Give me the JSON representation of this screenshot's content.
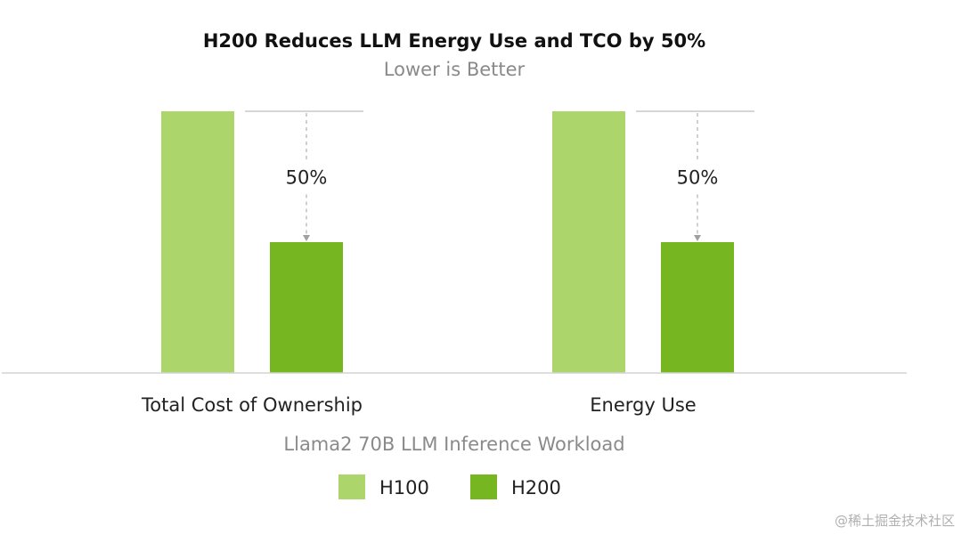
{
  "chart_data": {
    "type": "bar",
    "title": "H200 Reduces LLM Energy Use and TCO by 50%",
    "subtitle": "Lower is Better",
    "xlabel": "Llama2 70B LLM Inference Workload",
    "ylabel": "",
    "categories": [
      "Total Cost of Ownership",
      "Energy Use"
    ],
    "series": [
      {
        "name": "H100",
        "values": [
          1.0,
          1.0
        ],
        "color": "#acd56b"
      },
      {
        "name": "H200",
        "values": [
          0.5,
          0.5
        ],
        "color": "#76b621"
      }
    ],
    "ylim": [
      0,
      1
    ],
    "annotations": [
      "50%",
      "50%"
    ],
    "grid": false,
    "legend": "bottom-center"
  },
  "watermark": "@稀土掘金技术社区"
}
